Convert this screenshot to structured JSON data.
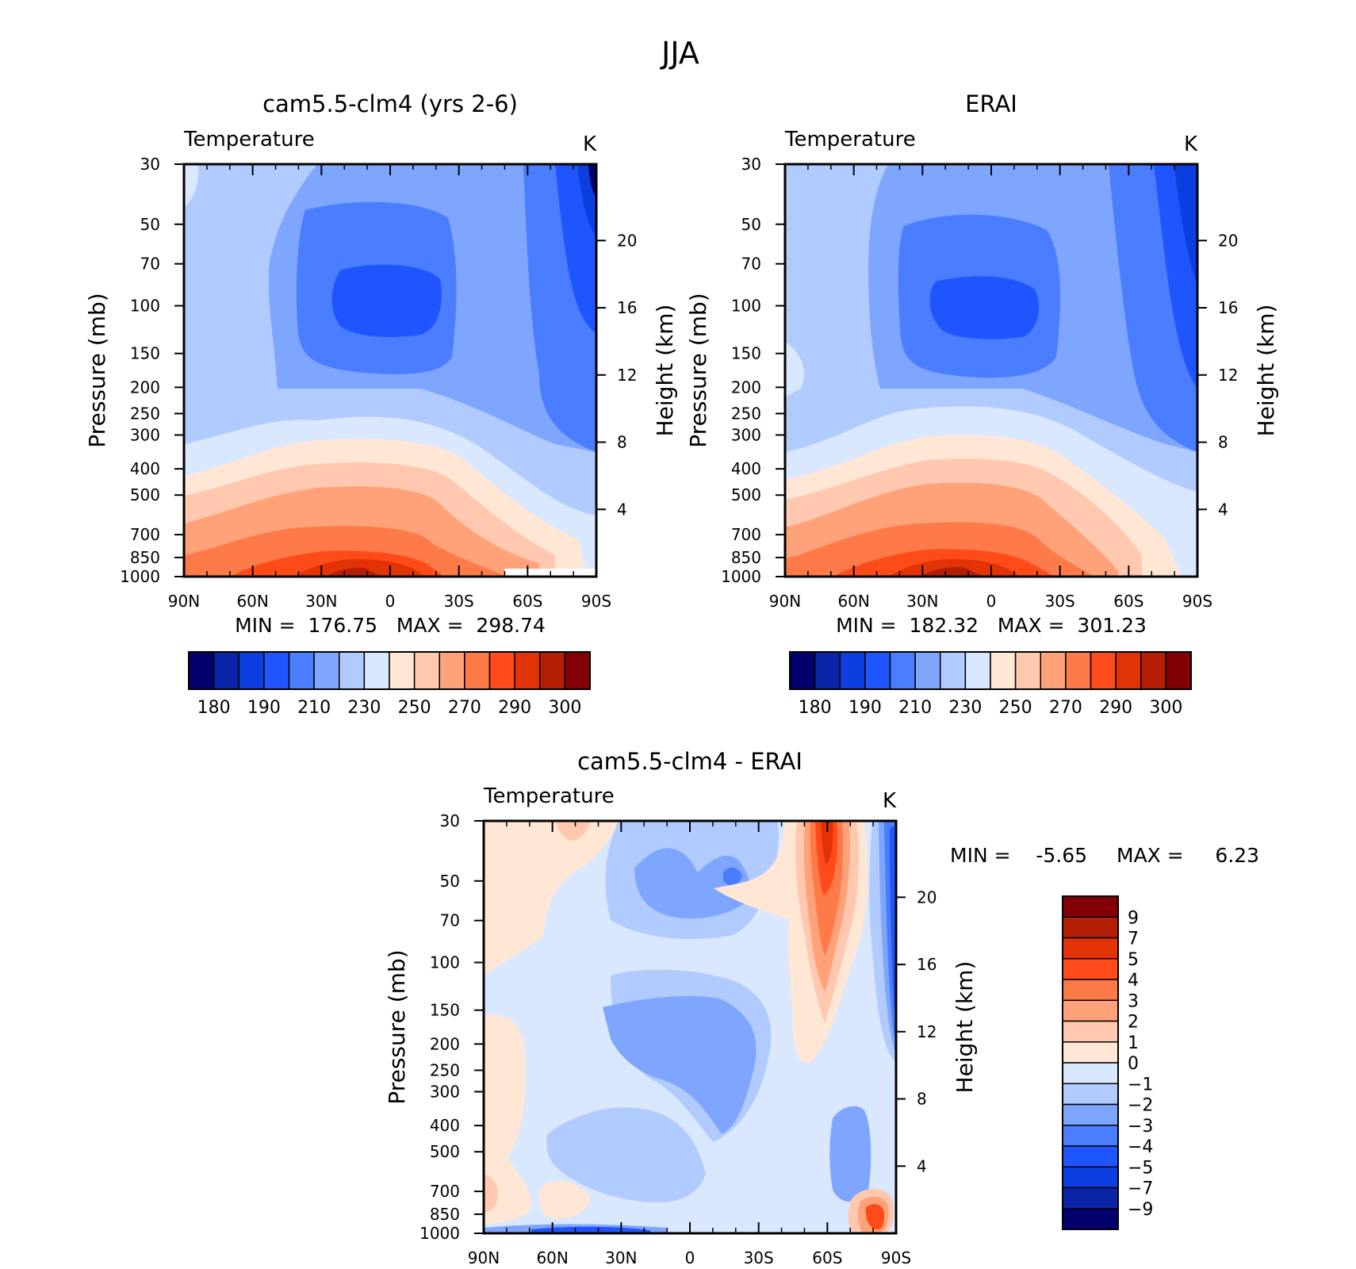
{
  "figure_title": "JJA",
  "chart_data": [
    {
      "type": "heatmap",
      "title": "cam5.5-clm4 (yrs 2-6)",
      "subtitle": "Temperature",
      "units": "K",
      "ylabel": "Pressure (mb)",
      "y2label": "Height (km)",
      "xticks": [
        "90N",
        "60N",
        "30N",
        "0",
        "30S",
        "60S",
        "90S"
      ],
      "yticks": [
        30,
        50,
        70,
        100,
        150,
        200,
        250,
        300,
        400,
        500,
        700,
        850,
        1000
      ],
      "y2ticks": [
        20,
        16,
        12,
        8,
        4
      ],
      "stats": "MIN =  176.75   MAX =  298.74",
      "min": 176.75,
      "max": 298.74,
      "colorbar": {
        "orientation": "horizontal",
        "labels": [
          "180",
          "190",
          "210",
          "230",
          "250",
          "270",
          "290",
          "300"
        ],
        "colors": [
          "#03006e",
          "#0a24a8",
          "#0d3ee0",
          "#1f55ff",
          "#4a7dff",
          "#7ea6ff",
          "#b2cbff",
          "#d9e8ff",
          "#ffe6d5",
          "#ffc8af",
          "#ffa27a",
          "#ff7a49",
          "#ff4a19",
          "#e23306",
          "#b31e04",
          "#820005"
        ]
      }
    },
    {
      "type": "heatmap",
      "title": "ERAI",
      "subtitle": "Temperature",
      "units": "K",
      "ylabel": "Pressure (mb)",
      "y2label": "Height (km)",
      "xticks": [
        "90N",
        "60N",
        "30N",
        "0",
        "30S",
        "60S",
        "90S"
      ],
      "yticks": [
        30,
        50,
        70,
        100,
        150,
        200,
        250,
        300,
        400,
        500,
        700,
        850,
        1000
      ],
      "y2ticks": [
        20,
        16,
        12,
        8,
        4
      ],
      "stats": "MIN =  182.32   MAX =  301.23",
      "min": 182.32,
      "max": 301.23,
      "colorbar": {
        "orientation": "horizontal",
        "labels": [
          "180",
          "190",
          "210",
          "230",
          "250",
          "270",
          "290",
          "300"
        ],
        "colors": [
          "#03006e",
          "#0a24a8",
          "#0d3ee0",
          "#1f55ff",
          "#4a7dff",
          "#7ea6ff",
          "#b2cbff",
          "#d9e8ff",
          "#ffe6d5",
          "#ffc8af",
          "#ffa27a",
          "#ff7a49",
          "#ff4a19",
          "#e23306",
          "#b31e04",
          "#820005"
        ]
      }
    },
    {
      "type": "heatmap",
      "title": "cam5.5-clm4 - ERAI",
      "subtitle": "Temperature",
      "units": "K",
      "ylabel": "Pressure (mb)",
      "y2label": "Height (km)",
      "xticks": [
        "90N",
        "60N",
        "30N",
        "0",
        "30S",
        "60S",
        "90S"
      ],
      "yticks": [
        30,
        50,
        70,
        100,
        150,
        200,
        250,
        300,
        400,
        500,
        700,
        850,
        1000
      ],
      "y2ticks": [
        20,
        16,
        12,
        8,
        4
      ],
      "stats_min": "MIN =    -5.65",
      "stats_max": "MAX =     6.23",
      "min": -5.65,
      "max": 6.23,
      "colorbar": {
        "orientation": "vertical",
        "labels": [
          "9",
          "7",
          "5",
          "4",
          "3",
          "2",
          "1",
          "0",
          "-1",
          "-2",
          "-3",
          "-4",
          "-5",
          "-7",
          "-9"
        ],
        "colors": [
          "#820005",
          "#b31e04",
          "#e23306",
          "#ff4a19",
          "#ff7a49",
          "#ffa27a",
          "#ffc8af",
          "#ffe6d5",
          "#d9e8ff",
          "#b2cbff",
          "#7ea6ff",
          "#4a7dff",
          "#1f55ff",
          "#0d3ee0",
          "#0a24a8",
          "#03006e"
        ]
      }
    }
  ]
}
